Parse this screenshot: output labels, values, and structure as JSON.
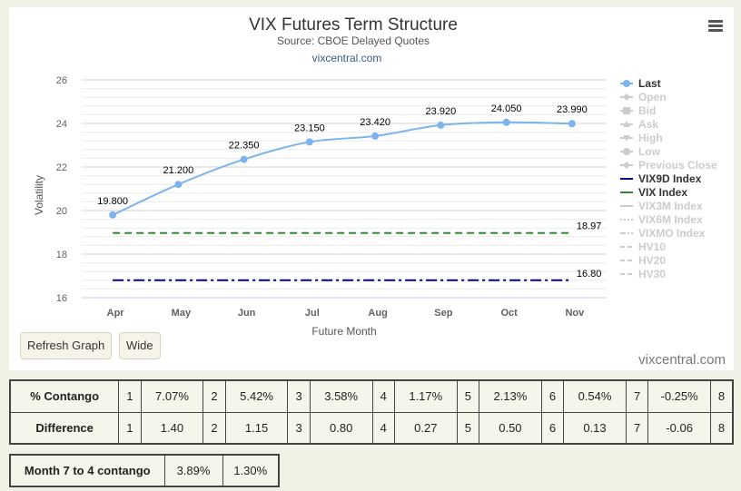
{
  "header": {
    "title": "VIX Futures Term Structure",
    "subtitle": "Source: CBOE Delayed Quotes",
    "site_link": "vixcentral.com"
  },
  "buttons": {
    "refresh": "Refresh Graph",
    "wide": "Wide"
  },
  "watermark": "vixcentral.com",
  "chart_data": {
    "type": "line",
    "xlabel": "Future Month",
    "ylabel": "Volatility",
    "categories": [
      "Apr",
      "May",
      "Jun",
      "Jul",
      "Aug",
      "Sep",
      "Oct",
      "Nov"
    ],
    "ylim": [
      16,
      26
    ],
    "yticks": [
      16,
      18,
      20,
      22,
      24,
      26
    ],
    "series": [
      {
        "name": "Last",
        "color": "#7cb5ec",
        "style": "smooth-markers",
        "values": [
          19.8,
          21.2,
          22.35,
          23.15,
          23.42,
          23.92,
          24.05,
          23.99
        ],
        "labels": [
          "19.800",
          "21.200",
          "22.350",
          "23.150",
          "23.420",
          "23.920",
          "24.050",
          "23.990"
        ]
      },
      {
        "name": "VIX Index",
        "color": "#2e8b2e",
        "style": "dashed",
        "values": [
          18.97,
          18.97,
          18.97,
          18.97,
          18.97,
          18.97,
          18.97,
          18.97
        ],
        "end_label": "18.97"
      },
      {
        "name": "VIX9D Index",
        "color": "#000080",
        "style": "dashdot",
        "values": [
          16.8,
          16.8,
          16.8,
          16.8,
          16.8,
          16.8,
          16.8,
          16.8
        ],
        "end_label": "16.80"
      }
    ],
    "legend": {
      "placement": "right",
      "items": [
        {
          "name": "Last",
          "color": "#7cb5ec",
          "active": true,
          "symbol": "circle"
        },
        {
          "name": "Open",
          "color": "#cccccc",
          "active": false,
          "symbol": "diamond"
        },
        {
          "name": "Bid",
          "color": "#cccccc",
          "active": false,
          "symbol": "square"
        },
        {
          "name": "Ask",
          "color": "#cccccc",
          "active": false,
          "symbol": "triangle"
        },
        {
          "name": "High",
          "color": "#cccccc",
          "active": false,
          "symbol": "triangle-down"
        },
        {
          "name": "Low",
          "color": "#cccccc",
          "active": false,
          "symbol": "circle"
        },
        {
          "name": "Previous Close",
          "color": "#cccccc",
          "active": false,
          "symbol": "diamond"
        },
        {
          "name": "VIX9D Index",
          "color": "#000080",
          "active": true,
          "symbol": "line"
        },
        {
          "name": "VIX Index",
          "color": "#2e8b2e",
          "active": true,
          "symbol": "line"
        },
        {
          "name": "VIX3M Index",
          "color": "#cccccc",
          "active": false,
          "symbol": "line"
        },
        {
          "name": "VIX6M Index",
          "color": "#cccccc",
          "active": false,
          "symbol": "dots"
        },
        {
          "name": "VIXMO Index",
          "color": "#cccccc",
          "active": false,
          "symbol": "dashdot"
        },
        {
          "name": "HV10",
          "color": "#cccccc",
          "active": false,
          "symbol": "dash"
        },
        {
          "name": "HV20",
          "color": "#cccccc",
          "active": false,
          "symbol": "dash"
        },
        {
          "name": "HV30",
          "color": "#cccccc",
          "active": false,
          "symbol": "dash"
        }
      ]
    }
  },
  "contango_table": {
    "rows": [
      {
        "label": "% Contango",
        "cells": [
          "1",
          "7.07%",
          "2",
          "5.42%",
          "3",
          "3.58%",
          "4",
          "1.17%",
          "5",
          "2.13%",
          "6",
          "0.54%",
          "7",
          "-0.25%",
          "8"
        ]
      },
      {
        "label": "Difference",
        "cells": [
          "1",
          "1.40",
          "2",
          "1.15",
          "3",
          "0.80",
          "4",
          "0.27",
          "5",
          "0.50",
          "6",
          "0.13",
          "7",
          "-0.06",
          "8"
        ]
      }
    ]
  },
  "month_table": {
    "label": "Month 7 to 4 contango",
    "cells": [
      "3.89%",
      "1.30%"
    ]
  }
}
